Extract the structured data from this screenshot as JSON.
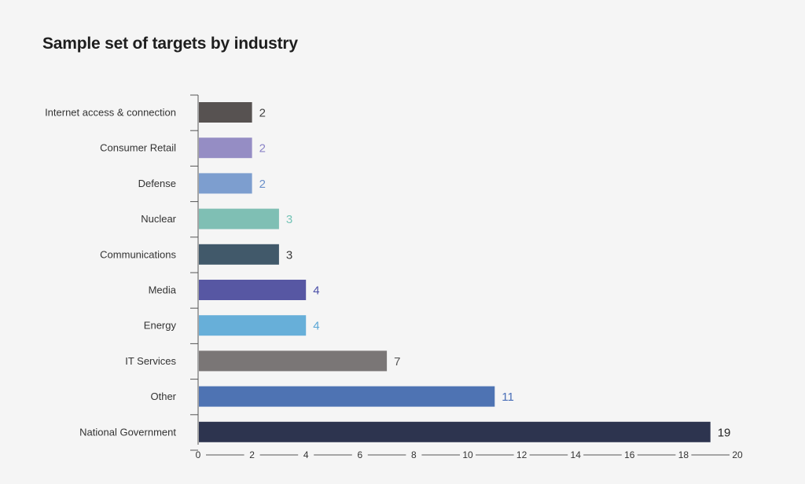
{
  "title": "Sample set of targets by industry",
  "chart_data": {
    "type": "bar",
    "orientation": "horizontal",
    "title": "Sample set of targets by industry",
    "xlabel": "",
    "ylabel": "",
    "xlim": [
      0,
      20
    ],
    "x_ticks": [
      0,
      2,
      4,
      6,
      8,
      10,
      12,
      14,
      16,
      18,
      20
    ],
    "grid": false,
    "categories": [
      "Internet access & connection",
      "Consumer Retail",
      "Defense",
      "Nuclear",
      "Communications",
      "Media",
      "Energy",
      "IT Services",
      "Other",
      "National Government"
    ],
    "values": [
      2,
      2,
      2,
      3,
      3,
      4,
      4,
      7,
      11,
      19
    ],
    "bar_colors": [
      "#575251",
      "#958dc4",
      "#7d9ecf",
      "#7fbfb4",
      "#41596a",
      "#5757a3",
      "#67afd9",
      "#7a7676",
      "#4e73b3",
      "#2d344f"
    ],
    "label_colors": [
      "#444444",
      "#8a82c6",
      "#6a8fc9",
      "#74c4b6",
      "#3a3a3a",
      "#4a4fa8",
      "#5aa6d6",
      "#555555",
      "#4a6fb8",
      "#222222"
    ]
  }
}
